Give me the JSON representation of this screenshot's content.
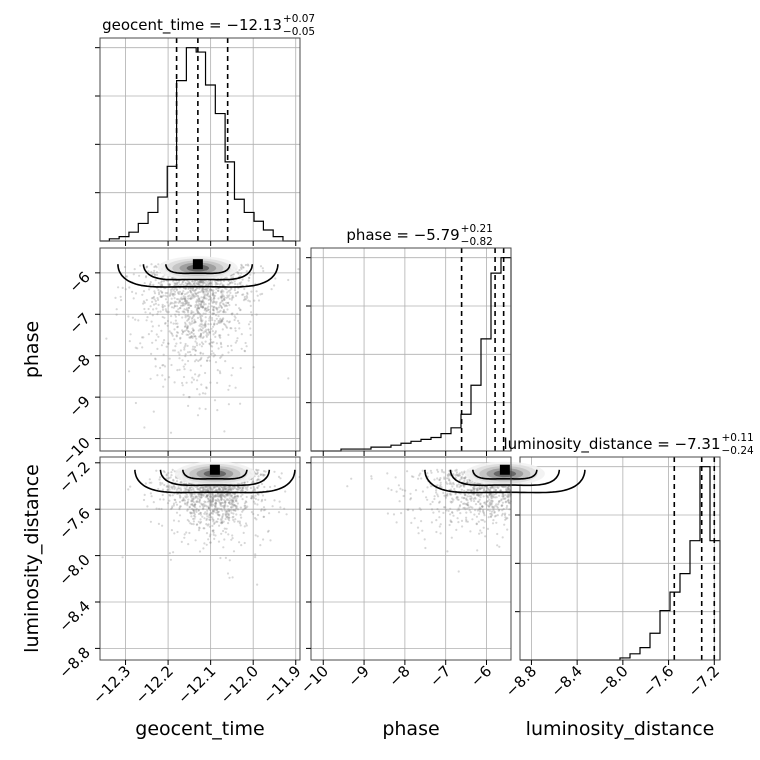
{
  "chart_data": {
    "type": "corner",
    "parameters": [
      "geocent_time",
      "phase",
      "luminosity_distance"
    ],
    "axis_labels": {
      "geocent_time": "geocent_time",
      "phase": "phase",
      "luminosity_distance": "luminosity_distance"
    },
    "ranges": {
      "geocent_time": [
        -12.36,
        -11.89
      ],
      "phase": [
        -10.3,
        -5.4
      ],
      "luminosity_distance": [
        -8.9,
        -7.15
      ]
    },
    "ticks": {
      "geocent_time": [
        -12.3,
        -12.2,
        -12.1,
        -12.0,
        -11.9
      ],
      "phase": [
        -10,
        -9,
        -8,
        -7,
        -6
      ],
      "luminosity_distance": [
        -8.8,
        -8.4,
        -8.0,
        -7.6,
        -7.2
      ]
    },
    "tick_labels": {
      "geocent_time": [
        "−12.3",
        "−12.2",
        "−12.1",
        "−12.0",
        "−11.9"
      ],
      "phase": [
        "−10",
        "−9",
        "−8",
        "−7",
        "−6"
      ],
      "luminosity_distance": [
        "−8.8",
        "−8.4",
        "−8.0",
        "−7.6",
        "−7.2"
      ]
    },
    "titles": [
      {
        "param": "geocent_time",
        "text": "geocent_time = −12.13",
        "plus": "+0.07",
        "minus": "−0.05"
      },
      {
        "param": "phase",
        "text": "phase = −5.79",
        "plus": "+0.21",
        "minus": "−0.82"
      },
      {
        "param": "luminosity_distance",
        "text": "luminosity_distance = −7.31",
        "plus": "+0.11",
        "minus": "−0.24"
      }
    ],
    "quantiles": {
      "geocent_time": [
        -12.18,
        -12.13,
        -12.06
      ],
      "phase": [
        -6.61,
        -5.79,
        -5.58
      ],
      "luminosity_distance": [
        -7.55,
        -7.31,
        -7.2
      ]
    },
    "histograms": {
      "geocent_time": {
        "edges": [
          -12.36,
          -12.338,
          -12.315,
          -12.292,
          -12.27,
          -12.247,
          -12.224,
          -12.202,
          -12.18,
          -12.157,
          -12.134,
          -12.112,
          -12.089,
          -12.066,
          -12.044,
          -12.021,
          -11.998,
          -11.976,
          -11.953,
          -11.93,
          -11.9
        ],
        "counts": [
          0,
          1,
          2,
          4,
          8,
          13,
          20,
          34,
          73,
          88,
          86,
          71,
          58,
          36,
          19,
          13,
          9,
          5,
          2,
          0
        ]
      },
      "phase": {
        "edges": [
          -10.3,
          -10.055,
          -9.81,
          -9.565,
          -9.32,
          -9.075,
          -8.83,
          -8.585,
          -8.34,
          -8.095,
          -7.85,
          -7.605,
          -7.36,
          -7.115,
          -6.87,
          -6.625,
          -6.38,
          -6.135,
          -5.89,
          -5.645,
          -5.4
        ],
        "counts": [
          0,
          0,
          0,
          1,
          1,
          1,
          2,
          2,
          3,
          4,
          5,
          6,
          7,
          9,
          12,
          19,
          34,
          58,
          92,
          100
        ]
      },
      "luminosity_distance": {
        "edges": [
          -8.9,
          -8.8125,
          -8.725,
          -8.6375,
          -8.55,
          -8.4625,
          -8.375,
          -8.2875,
          -8.2,
          -8.1125,
          -8.025,
          -7.9375,
          -7.85,
          -7.7625,
          -7.675,
          -7.5875,
          -7.5,
          -7.4125,
          -7.325,
          -7.2375,
          -7.15
        ],
        "counts": [
          0,
          0,
          0,
          0,
          0,
          0,
          0,
          0,
          0,
          0,
          1,
          3,
          6,
          13,
          24,
          33,
          42,
          58,
          94,
          58
        ]
      }
    },
    "joint_peaks": {
      "phase_vs_geocent_time": {
        "x": -12.13,
        "y": -5.79
      },
      "luminosity_distance_vs_geocent_time": {
        "x": -12.09,
        "y": -7.26
      },
      "luminosity_distance_vs_phase": {
        "x": -5.55,
        "y": -7.26
      }
    },
    "grid": true
  }
}
